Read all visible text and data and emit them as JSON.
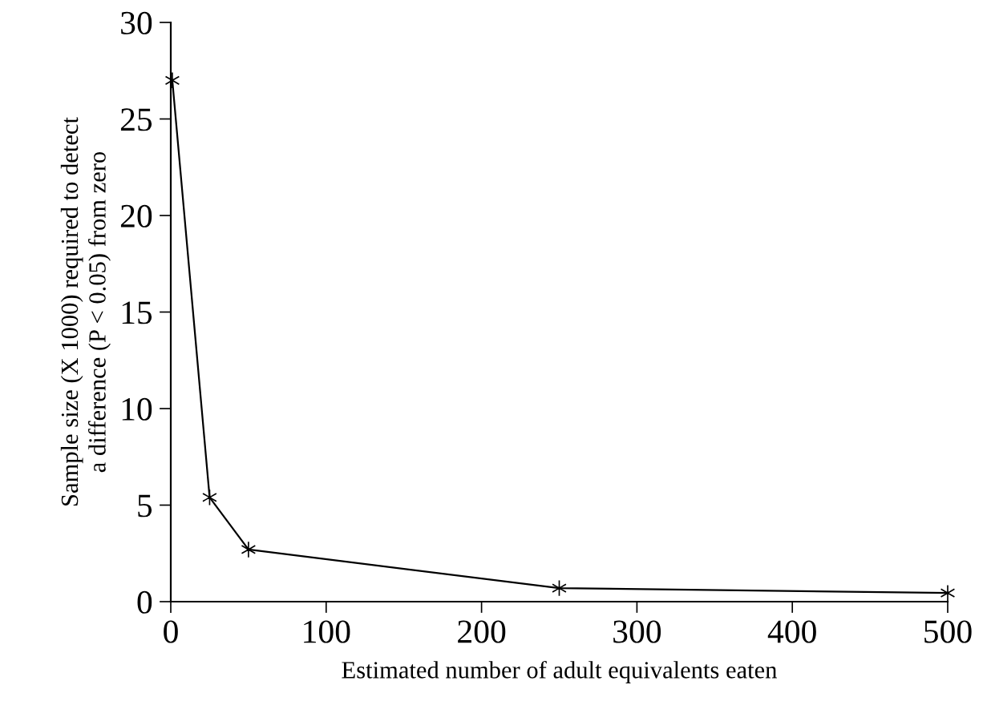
{
  "chart_data": {
    "type": "line",
    "xlabel": "Estimated number of adult equivalents eaten",
    "ylabel": "Sample size (X 1000) required to detect\na difference (P < 0.05) from zero",
    "x": [
      1,
      25,
      50,
      250,
      500
    ],
    "series": [
      {
        "color": "#000000",
        "values": [
          27.0,
          5.4,
          2.7,
          0.7,
          0.45
        ]
      }
    ],
    "xlim": [
      0,
      500
    ],
    "xticks": [
      0,
      100,
      200,
      300,
      400,
      500
    ],
    "ylim": [
      0,
      30
    ],
    "yticks": [
      0,
      5,
      10,
      15,
      20,
      25,
      30
    ],
    "marker": "cross",
    "line_style": "solid",
    "grid": false,
    "legend": false
  }
}
